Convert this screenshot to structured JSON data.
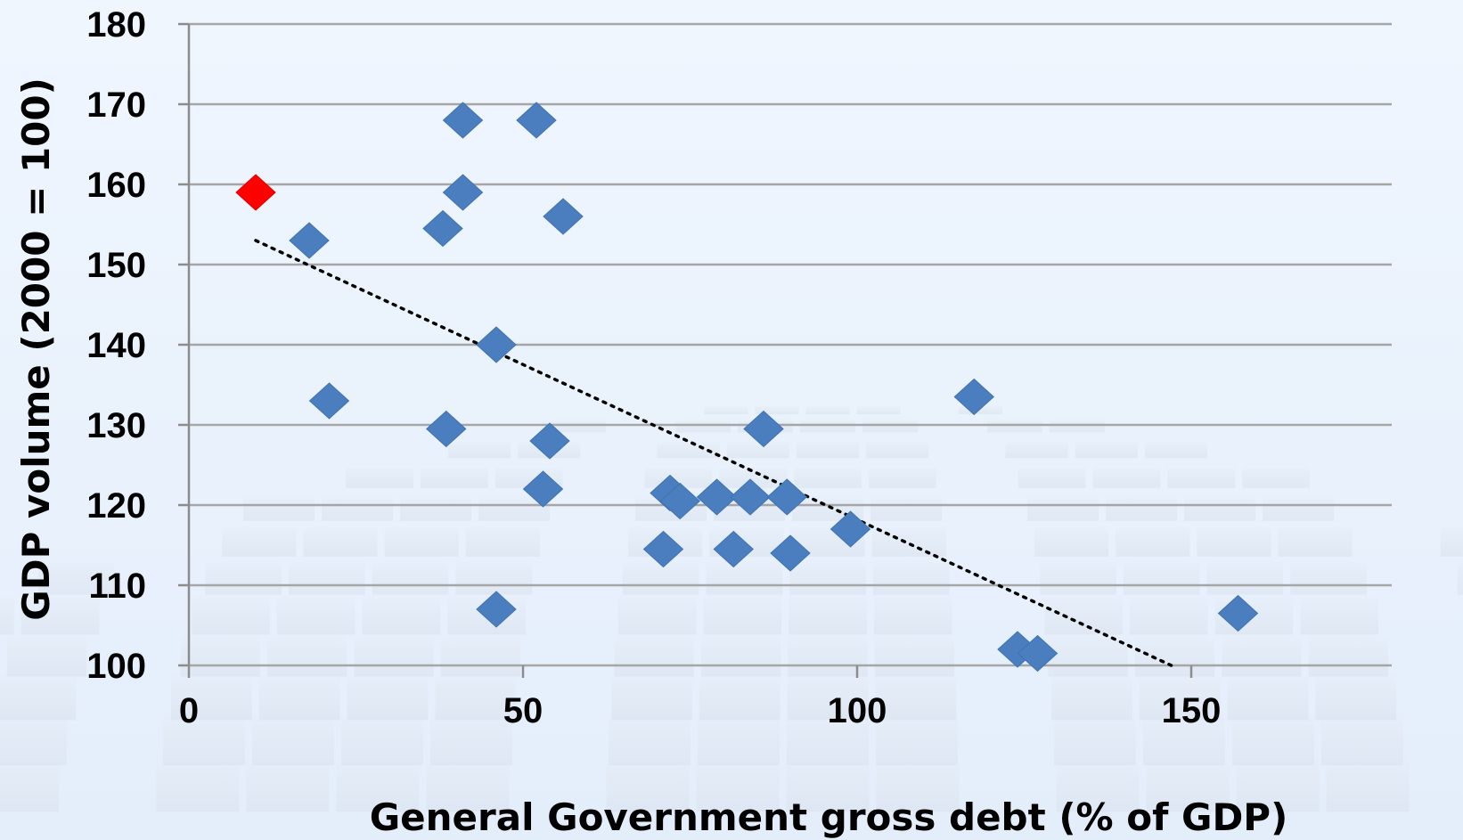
{
  "chart_data": {
    "type": "scatter",
    "title": "",
    "xlabel": "General Government gross debt (% of GDP)",
    "ylabel": "GDP volume (2000 = 100)",
    "xlim": [
      0,
      180
    ],
    "ylim": [
      100,
      180
    ],
    "x_ticks": [
      "0",
      "50",
      "100",
      "150"
    ],
    "y_ticks": [
      "100",
      "110",
      "120",
      "130",
      "140",
      "150",
      "160",
      "170",
      "180"
    ],
    "grid": "horizontal",
    "marker": "diamond",
    "colors": {
      "points": "#4a7ebf",
      "highlight": "#ff0000",
      "trendline": "#000000",
      "grid": "#a6a6a6"
    },
    "series": [
      {
        "points": [
          {
            "x": 18,
            "y": 153
          },
          {
            "x": 21,
            "y": 133
          },
          {
            "x": 38,
            "y": 154.5
          },
          {
            "x": 38.5,
            "y": 129.5
          },
          {
            "x": 41,
            "y": 168
          },
          {
            "x": 41,
            "y": 159
          },
          {
            "x": 46,
            "y": 140
          },
          {
            "x": 46,
            "y": 107
          },
          {
            "x": 52,
            "y": 168
          },
          {
            "x": 53,
            "y": 122
          },
          {
            "x": 54,
            "y": 128
          },
          {
            "x": 56,
            "y": 156
          },
          {
            "x": 71,
            "y": 114.5
          },
          {
            "x": 72,
            "y": 121.5
          },
          {
            "x": 73.5,
            "y": 120.5
          },
          {
            "x": 79,
            "y": 121
          },
          {
            "x": 81.5,
            "y": 114.5
          },
          {
            "x": 84,
            "y": 121
          },
          {
            "x": 86,
            "y": 129.5
          },
          {
            "x": 89.5,
            "y": 121
          },
          {
            "x": 90,
            "y": 114
          },
          {
            "x": 99,
            "y": 117
          },
          {
            "x": 117.5,
            "y": 133.5
          },
          {
            "x": 124,
            "y": 102
          },
          {
            "x": 127,
            "y": 101.5
          },
          {
            "x": 157,
            "y": 106.5
          }
        ]
      },
      {
        "highlight": true,
        "points": [
          {
            "x": 10,
            "y": 159
          }
        ]
      }
    ],
    "trendline": {
      "type": "linear",
      "from": {
        "x": 10,
        "y": 153
      },
      "to": {
        "x": 147,
        "y": 100
      }
    }
  }
}
